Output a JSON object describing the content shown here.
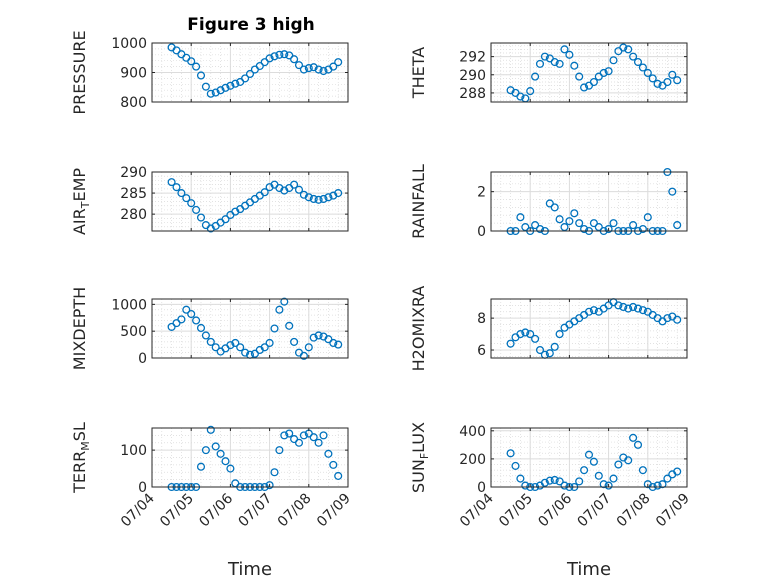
{
  "figure": {
    "title": "Figure 3 high",
    "marker_color": "#0072BD",
    "grid": true
  },
  "panels": [
    {
      "ylabel": "PRESSURE",
      "ylabel_sub": null
    },
    {
      "ylabel": "THETA",
      "ylabel_sub": null
    },
    {
      "ylabel": "AIR",
      "ylabel_sub": [
        "T",
        "EMP"
      ]
    },
    {
      "ylabel": "RAINFALL",
      "ylabel_sub": null
    },
    {
      "ylabel": "MIXDEPTH",
      "ylabel_sub": null
    },
    {
      "ylabel": "H2OMIXRA",
      "ylabel_sub": null
    },
    {
      "ylabel": "TERR",
      "ylabel_sub": [
        "M",
        "SL"
      ]
    },
    {
      "ylabel": "SUN",
      "ylabel_sub": [
        "F",
        "LUX"
      ]
    }
  ],
  "chart_data": [
    {
      "type": "scatter",
      "title": "Figure 3 high",
      "xlabel": "",
      "ylabel": "PRESSURE",
      "xlim": [
        "07/04",
        "07/09"
      ],
      "ylim": [
        800,
        1000
      ],
      "yticks": [
        800,
        900,
        1000
      ],
      "xticks": [
        "07/04",
        "07/05",
        "07/06",
        "07/07",
        "07/08",
        "07/09"
      ],
      "x": [
        "07/04 12:00",
        "07/04 15:00",
        "07/04 18:00",
        "07/04 21:00",
        "07/05 00:00",
        "07/05 03:00",
        "07/05 06:00",
        "07/05 09:00",
        "07/05 12:00",
        "07/05 15:00",
        "07/05 18:00",
        "07/05 21:00",
        "07/06 00:00",
        "07/06 03:00",
        "07/06 06:00",
        "07/06 09:00",
        "07/06 12:00",
        "07/06 15:00",
        "07/06 18:00",
        "07/06 21:00",
        "07/07 00:00",
        "07/07 03:00",
        "07/07 06:00",
        "07/07 09:00",
        "07/07 12:00",
        "07/07 15:00",
        "07/07 18:00",
        "07/07 21:00",
        "07/08 00:00",
        "07/08 03:00",
        "07/08 06:00",
        "07/08 09:00",
        "07/08 12:00",
        "07/08 15:00",
        "07/08 18:00"
      ],
      "y": [
        985,
        975,
        962,
        950,
        938,
        920,
        890,
        852,
        828,
        832,
        840,
        848,
        855,
        862,
        868,
        880,
        895,
        910,
        922,
        935,
        948,
        955,
        960,
        962,
        958,
        945,
        925,
        910,
        915,
        918,
        910,
        905,
        910,
        920,
        935
      ]
    },
    {
      "type": "scatter",
      "xlabel": "",
      "ylabel": "THETA",
      "xlim": [
        "07/04",
        "07/09"
      ],
      "ylim": [
        287,
        293.5
      ],
      "yticks": [
        288,
        290,
        292
      ],
      "xticks": [
        "07/04",
        "07/05",
        "07/06",
        "07/07",
        "07/08",
        "07/09"
      ],
      "x": [
        "07/04 12:00",
        "07/04 15:00",
        "07/04 18:00",
        "07/04 21:00",
        "07/05 00:00",
        "07/05 03:00",
        "07/05 06:00",
        "07/05 09:00",
        "07/05 12:00",
        "07/05 15:00",
        "07/05 18:00",
        "07/05 21:00",
        "07/06 00:00",
        "07/06 03:00",
        "07/06 06:00",
        "07/06 09:00",
        "07/06 12:00",
        "07/06 15:00",
        "07/06 18:00",
        "07/06 21:00",
        "07/07 00:00",
        "07/07 03:00",
        "07/07 06:00",
        "07/07 09:00",
        "07/07 12:00",
        "07/07 15:00",
        "07/07 18:00",
        "07/07 21:00",
        "07/08 00:00",
        "07/08 03:00",
        "07/08 06:00",
        "07/08 09:00",
        "07/08 12:00",
        "07/08 15:00",
        "07/08 18:00"
      ],
      "y": [
        288.3,
        288.0,
        287.6,
        287.4,
        288.2,
        289.8,
        291.2,
        292.0,
        291.8,
        291.4,
        291.2,
        292.8,
        292.2,
        291.0,
        289.8,
        288.6,
        288.8,
        289.2,
        289.8,
        290.2,
        290.4,
        291.6,
        292.6,
        293.0,
        292.8,
        292.0,
        291.4,
        290.8,
        290.2,
        289.6,
        289.0,
        288.8,
        289.2,
        290.0,
        289.4
      ]
    },
    {
      "type": "scatter",
      "xlabel": "",
      "ylabel": "AIR_TEMP",
      "xlim": [
        "07/04",
        "07/09"
      ],
      "ylim": [
        276,
        290
      ],
      "yticks": [
        280,
        285,
        290
      ],
      "xticks": [
        "07/04",
        "07/05",
        "07/06",
        "07/07",
        "07/08",
        "07/09"
      ],
      "x": [
        "07/04 12:00",
        "07/04 15:00",
        "07/04 18:00",
        "07/04 21:00",
        "07/05 00:00",
        "07/05 03:00",
        "07/05 06:00",
        "07/05 09:00",
        "07/05 12:00",
        "07/05 15:00",
        "07/05 18:00",
        "07/05 21:00",
        "07/06 00:00",
        "07/06 03:00",
        "07/06 06:00",
        "07/06 09:00",
        "07/06 12:00",
        "07/06 15:00",
        "07/06 18:00",
        "07/06 21:00",
        "07/07 00:00",
        "07/07 03:00",
        "07/07 06:00",
        "07/07 09:00",
        "07/07 12:00",
        "07/07 15:00",
        "07/07 18:00",
        "07/07 21:00",
        "07/08 00:00",
        "07/08 03:00",
        "07/08 06:00",
        "07/08 09:00",
        "07/08 12:00",
        "07/08 15:00",
        "07/08 18:00"
      ],
      "y": [
        287.6,
        286.4,
        285.0,
        283.8,
        282.6,
        281.0,
        279.2,
        277.4,
        276.6,
        277.2,
        278.0,
        278.8,
        279.8,
        280.6,
        281.2,
        282.0,
        282.8,
        283.6,
        284.4,
        285.2,
        286.4,
        287.0,
        286.2,
        285.6,
        286.2,
        287.0,
        285.8,
        284.6,
        284.0,
        283.6,
        283.4,
        283.6,
        284.0,
        284.4,
        285.0
      ]
    },
    {
      "type": "scatter",
      "xlabel": "",
      "ylabel": "RAINFALL",
      "xlim": [
        "07/04",
        "07/09"
      ],
      "ylim": [
        0,
        3
      ],
      "yticks": [
        0,
        2
      ],
      "xticks": [
        "07/04",
        "07/05",
        "07/06",
        "07/07",
        "07/08",
        "07/09"
      ],
      "x": [
        "07/04 12:00",
        "07/04 15:00",
        "07/04 18:00",
        "07/04 21:00",
        "07/05 00:00",
        "07/05 03:00",
        "07/05 06:00",
        "07/05 09:00",
        "07/05 12:00",
        "07/05 15:00",
        "07/05 18:00",
        "07/05 21:00",
        "07/06 00:00",
        "07/06 03:00",
        "07/06 06:00",
        "07/06 09:00",
        "07/06 12:00",
        "07/06 15:00",
        "07/06 18:00",
        "07/06 21:00",
        "07/07 00:00",
        "07/07 03:00",
        "07/07 06:00",
        "07/07 09:00",
        "07/07 12:00",
        "07/07 15:00",
        "07/07 18:00",
        "07/07 21:00",
        "07/08 00:00",
        "07/08 03:00",
        "07/08 06:00",
        "07/08 09:00",
        "07/08 12:00",
        "07/08 15:00",
        "07/08 18:00"
      ],
      "y": [
        0.0,
        0.0,
        0.7,
        0.2,
        0.0,
        0.3,
        0.1,
        0.0,
        1.4,
        1.2,
        0.6,
        0.2,
        0.5,
        0.9,
        0.4,
        0.1,
        0.0,
        0.4,
        0.2,
        0.0,
        0.1,
        0.4,
        0.0,
        0.0,
        0.0,
        0.3,
        0.0,
        0.1,
        0.7,
        0.0,
        0.0,
        0.0,
        3.0,
        2.0,
        0.3
      ]
    },
    {
      "type": "scatter",
      "xlabel": "",
      "ylabel": "MIXDEPTH",
      "xlim": [
        "07/04",
        "07/09"
      ],
      "ylim": [
        0,
        1100
      ],
      "yticks": [
        0,
        500,
        1000
      ],
      "xticks": [
        "07/04",
        "07/05",
        "07/06",
        "07/07",
        "07/08",
        "07/09"
      ],
      "x": [
        "07/04 12:00",
        "07/04 15:00",
        "07/04 18:00",
        "07/04 21:00",
        "07/05 00:00",
        "07/05 03:00",
        "07/05 06:00",
        "07/05 09:00",
        "07/05 12:00",
        "07/05 15:00",
        "07/05 18:00",
        "07/05 21:00",
        "07/06 00:00",
        "07/06 03:00",
        "07/06 06:00",
        "07/06 09:00",
        "07/06 12:00",
        "07/06 15:00",
        "07/06 18:00",
        "07/06 21:00",
        "07/07 00:00",
        "07/07 03:00",
        "07/07 06:00",
        "07/07 09:00",
        "07/07 12:00",
        "07/07 15:00",
        "07/07 18:00",
        "07/07 21:00",
        "07/08 00:00",
        "07/08 03:00",
        "07/08 06:00",
        "07/08 09:00",
        "07/08 12:00",
        "07/08 15:00",
        "07/08 18:00"
      ],
      "y": [
        580,
        650,
        720,
        900,
        820,
        700,
        560,
        420,
        300,
        200,
        120,
        180,
        240,
        280,
        200,
        100,
        60,
        80,
        150,
        200,
        280,
        550,
        900,
        1050,
        600,
        300,
        100,
        40,
        200,
        380,
        420,
        400,
        350,
        280,
        250
      ]
    },
    {
      "type": "scatter",
      "xlabel": "",
      "ylabel": "H2OMIXRA",
      "xlim": [
        "07/04",
        "07/09"
      ],
      "ylim": [
        5.5,
        9.2
      ],
      "yticks": [
        6,
        8
      ],
      "xticks": [
        "07/04",
        "07/05",
        "07/06",
        "07/07",
        "07/08",
        "07/09"
      ],
      "x": [
        "07/04 12:00",
        "07/04 15:00",
        "07/04 18:00",
        "07/04 21:00",
        "07/05 00:00",
        "07/05 03:00",
        "07/05 06:00",
        "07/05 09:00",
        "07/05 12:00",
        "07/05 15:00",
        "07/05 18:00",
        "07/05 21:00",
        "07/06 00:00",
        "07/06 03:00",
        "07/06 06:00",
        "07/06 09:00",
        "07/06 12:00",
        "07/06 15:00",
        "07/06 18:00",
        "07/06 21:00",
        "07/07 00:00",
        "07/07 03:00",
        "07/07 06:00",
        "07/07 09:00",
        "07/07 12:00",
        "07/07 15:00",
        "07/07 18:00",
        "07/07 21:00",
        "07/08 00:00",
        "07/08 03:00",
        "07/08 06:00",
        "07/08 09:00",
        "07/08 12:00",
        "07/08 15:00",
        "07/08 18:00"
      ],
      "y": [
        6.4,
        6.8,
        7.0,
        7.1,
        7.0,
        6.7,
        6.0,
        5.7,
        5.8,
        6.2,
        7.0,
        7.4,
        7.6,
        7.8,
        8.0,
        8.2,
        8.4,
        8.5,
        8.4,
        8.6,
        8.8,
        9.0,
        8.8,
        8.7,
        8.6,
        8.7,
        8.6,
        8.5,
        8.4,
        8.2,
        8.0,
        7.8,
        8.0,
        8.1,
        7.9
      ]
    },
    {
      "type": "scatter",
      "xlabel": "Time",
      "ylabel": "TERR_MSL",
      "xlim": [
        "07/04",
        "07/09"
      ],
      "ylim": [
        0,
        160
      ],
      "yticks": [
        0,
        100
      ],
      "xticks": [
        "07/04",
        "07/05",
        "07/06",
        "07/07",
        "07/08",
        "07/09"
      ],
      "x": [
        "07/04 12:00",
        "07/04 15:00",
        "07/04 18:00",
        "07/04 21:00",
        "07/05 00:00",
        "07/05 03:00",
        "07/05 06:00",
        "07/05 09:00",
        "07/05 12:00",
        "07/05 15:00",
        "07/05 18:00",
        "07/05 21:00",
        "07/06 00:00",
        "07/06 03:00",
        "07/06 06:00",
        "07/06 09:00",
        "07/06 12:00",
        "07/06 15:00",
        "07/06 18:00",
        "07/06 21:00",
        "07/07 00:00",
        "07/07 03:00",
        "07/07 06:00",
        "07/07 09:00",
        "07/07 12:00",
        "07/07 15:00",
        "07/07 18:00",
        "07/07 21:00",
        "07/08 00:00",
        "07/08 03:00",
        "07/08 06:00",
        "07/08 09:00",
        "07/08 12:00",
        "07/08 15:00",
        "07/08 18:00"
      ],
      "y": [
        0,
        0,
        0,
        0,
        0,
        0,
        55,
        100,
        155,
        110,
        90,
        70,
        50,
        10,
        0,
        0,
        0,
        0,
        0,
        0,
        5,
        40,
        100,
        140,
        145,
        130,
        120,
        140,
        145,
        135,
        120,
        140,
        90,
        60,
        30
      ]
    },
    {
      "type": "scatter",
      "xlabel": "Time",
      "ylabel": "SUN_FLUX",
      "xlim": [
        "07/04",
        "07/09"
      ],
      "ylim": [
        0,
        420
      ],
      "yticks": [
        0,
        200,
        400
      ],
      "xticks": [
        "07/04",
        "07/05",
        "07/06",
        "07/07",
        "07/08",
        "07/09"
      ],
      "x": [
        "07/04 12:00",
        "07/04 15:00",
        "07/04 18:00",
        "07/04 21:00",
        "07/05 00:00",
        "07/05 03:00",
        "07/05 06:00",
        "07/05 09:00",
        "07/05 12:00",
        "07/05 15:00",
        "07/05 18:00",
        "07/05 21:00",
        "07/06 00:00",
        "07/06 03:00",
        "07/06 06:00",
        "07/06 09:00",
        "07/06 12:00",
        "07/06 15:00",
        "07/06 18:00",
        "07/06 21:00",
        "07/07 00:00",
        "07/07 03:00",
        "07/07 06:00",
        "07/07 09:00",
        "07/07 12:00",
        "07/07 15:00",
        "07/07 18:00",
        "07/07 21:00",
        "07/08 00:00",
        "07/08 03:00",
        "07/08 06:00",
        "07/08 09:00",
        "07/08 12:00",
        "07/08 15:00",
        "07/08 18:00"
      ],
      "y": [
        240,
        150,
        60,
        10,
        0,
        0,
        10,
        30,
        45,
        50,
        40,
        10,
        0,
        0,
        40,
        120,
        230,
        180,
        80,
        20,
        10,
        60,
        160,
        210,
        190,
        350,
        300,
        120,
        20,
        0,
        10,
        20,
        60,
        90,
        110
      ]
    }
  ]
}
